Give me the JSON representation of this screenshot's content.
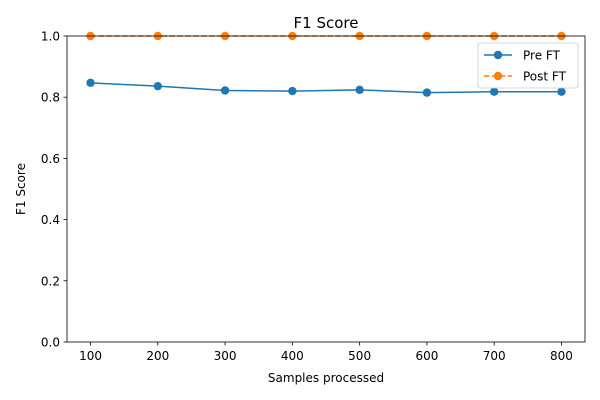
{
  "chart_data": {
    "type": "line",
    "title": "F1 Score",
    "xlabel": "Samples processed",
    "ylabel": "F1 Score",
    "x": [
      100,
      200,
      300,
      400,
      500,
      600,
      700,
      800
    ],
    "xticks": [
      "100",
      "200",
      "300",
      "400",
      "500",
      "600",
      "700",
      "800"
    ],
    "xlim": [
      65,
      835
    ],
    "yticks": [
      "0.0",
      "0.2",
      "0.4",
      "0.6",
      "0.8",
      "1.0"
    ],
    "ylim": [
      0,
      1
    ],
    "grid": false,
    "legend_position": "top-right",
    "series": [
      {
        "name": "Pre FT",
        "color": "#1f77b4",
        "linestyle": "solid",
        "marker": "circle",
        "values": [
          0.847,
          0.836,
          0.822,
          0.82,
          0.824,
          0.815,
          0.818,
          0.818
        ]
      },
      {
        "name": "Post FT",
        "color": "#ff7f0e",
        "linestyle": "dashed",
        "marker": "circle",
        "values": [
          1.0,
          1.0,
          1.0,
          1.0,
          1.0,
          1.0,
          1.0,
          1.0
        ]
      }
    ]
  }
}
